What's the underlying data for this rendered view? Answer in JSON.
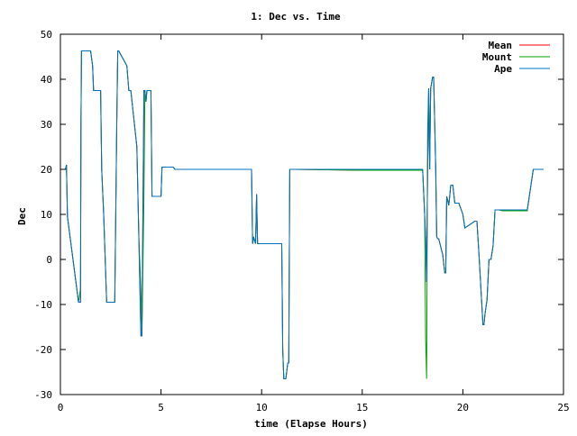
{
  "chart_data": {
    "type": "line",
    "title": "1: Dec vs. Time",
    "xlabel": "time (Elapse Hours)",
    "ylabel": "Dec",
    "xlim": [
      0,
      25
    ],
    "ylim": [
      -30,
      50
    ],
    "xticks": [
      0,
      5,
      10,
      15,
      20,
      25
    ],
    "yticks": [
      -30,
      -20,
      -10,
      0,
      10,
      20,
      30,
      40,
      50
    ],
    "grid": false,
    "legend_position": "top-right",
    "series": [
      {
        "name": "Mean",
        "color": "#ff0000",
        "x": [
          0,
          0.25,
          0.3,
          0.35,
          0.9,
          1.0,
          1.02,
          1.05,
          1.5,
          1.6,
          1.65,
          2.0,
          2.05,
          2.15,
          2.3,
          2.4,
          2.7,
          2.8,
          2.85,
          2.9,
          3.3,
          3.4,
          3.5,
          3.8,
          3.9,
          4.0,
          4.05,
          4.15,
          4.2,
          4.25,
          4.3,
          4.5,
          4.55,
          4.6,
          4.65,
          4.7,
          5.0,
          5.05,
          5.1,
          5.6,
          5.7,
          9.5,
          9.55,
          9.6,
          9.7,
          9.75,
          9.8,
          9.9,
          10.0,
          10.6,
          11.0,
          11.05,
          11.1,
          11.2,
          11.3,
          11.35,
          11.4,
          11.6,
          15.0,
          18.0,
          18.1,
          18.15,
          18.2,
          18.25,
          18.3,
          18.35,
          18.4,
          18.5,
          18.55,
          18.6,
          18.65,
          18.7,
          18.75,
          18.8,
          19.0,
          19.1,
          19.15,
          19.2,
          19.3,
          19.4,
          19.5,
          19.6,
          19.7,
          19.8,
          20.0,
          20.1,
          20.6,
          20.7,
          20.8,
          21.0,
          21.05,
          21.1,
          21.2,
          21.3,
          21.4,
          21.5,
          21.6,
          21.7,
          21.8,
          22.0,
          22.5,
          23.0,
          23.2,
          23.5,
          23.6,
          23.65,
          23.7,
          24.0
        ],
        "y": [
          20,
          20,
          21,
          9.5,
          -9.5,
          -9.5,
          30,
          46.3,
          46.3,
          43,
          37.5,
          37.5,
          20,
          10,
          -9.5,
          -9.5,
          -9.5,
          30,
          46.3,
          46.3,
          43,
          37.5,
          37.5,
          25,
          5,
          -17,
          -17,
          37.5,
          37.5,
          35,
          37.5,
          37.5,
          14,
          14,
          14,
          14,
          14,
          20.5,
          20.5,
          20.5,
          20,
          20,
          3.5,
          5,
          3.5,
          14.5,
          3.5,
          3.5,
          3.5,
          3.5,
          3.5,
          -20,
          -26.5,
          -26.5,
          -23,
          -23,
          20,
          20,
          19.8,
          19.8,
          10,
          5,
          -5,
          20,
          38,
          20,
          38,
          40.5,
          40.5,
          30,
          20,
          5,
          4.6,
          4.6,
          1,
          -3,
          -3,
          14,
          12,
          16.5,
          16.5,
          12.5,
          12.5,
          12.5,
          10,
          7,
          8.5,
          8.5,
          1,
          -14.5,
          -14.5,
          -12,
          -9,
          0,
          0,
          3,
          11,
          11,
          11,
          10.8,
          10.8,
          10.8,
          10.8,
          20,
          20,
          20,
          20,
          20
        ]
      },
      {
        "name": "Mount",
        "color": "#00a000",
        "x": [
          0,
          0.25,
          0.3,
          0.35,
          0.9,
          1.0,
          1.02,
          1.05,
          1.5,
          1.6,
          1.65,
          2.0,
          2.05,
          2.15,
          2.3,
          2.4,
          2.7,
          2.8,
          2.85,
          2.9,
          3.3,
          3.4,
          3.5,
          3.8,
          3.9,
          4.0,
          4.05,
          4.15,
          4.2,
          4.25,
          4.3,
          4.5,
          4.55,
          4.6,
          4.65,
          4.7,
          5.0,
          5.05,
          5.1,
          5.6,
          5.7,
          9.5,
          9.55,
          9.6,
          9.7,
          9.75,
          9.8,
          9.9,
          10.0,
          10.6,
          11.0,
          11.05,
          11.1,
          11.2,
          11.3,
          11.35,
          11.4,
          11.6,
          15.0,
          18.0,
          18.1,
          18.15,
          18.2,
          18.25,
          18.3,
          18.35,
          18.4,
          18.5,
          18.55,
          18.6,
          18.65,
          18.7,
          18.75,
          18.8,
          19.0,
          19.1,
          19.15,
          19.2,
          19.3,
          19.4,
          19.5,
          19.6,
          19.7,
          19.8,
          20.0,
          20.1,
          20.6,
          20.7,
          20.8,
          21.0,
          21.05,
          21.1,
          21.2,
          21.3,
          21.4,
          21.5,
          21.6,
          21.7,
          21.8,
          22.0,
          22.5,
          23.0,
          23.2,
          23.5,
          23.6,
          23.65,
          23.7,
          24.0
        ],
        "y": [
          20,
          20,
          21,
          9.5,
          -9.5,
          -6.5,
          30,
          46.3,
          46.3,
          43,
          37.5,
          37.5,
          20,
          10,
          -9.5,
          -9.5,
          -9.5,
          30,
          46.3,
          46.3,
          43,
          37.5,
          37.5,
          25,
          5,
          -7,
          -17,
          13,
          37.5,
          35,
          37.5,
          37.5,
          14,
          14,
          14,
          14,
          14,
          20.5,
          20.5,
          20.5,
          20,
          20,
          3.5,
          5,
          3.5,
          14.5,
          3.5,
          3.5,
          3.5,
          3.5,
          3.5,
          -20,
          -26.5,
          -26.5,
          -23,
          -23,
          20,
          20,
          19.8,
          19.8,
          10,
          -17.5,
          -26.5,
          28.5,
          38,
          20,
          38,
          40.5,
          40.5,
          30,
          20,
          5,
          4.6,
          4.6,
          1,
          -3,
          -3,
          14,
          12,
          16.5,
          16.5,
          12.5,
          12.5,
          12.5,
          10,
          7,
          8.5,
          8.5,
          1,
          -14.5,
          -14.5,
          -12,
          -9,
          0,
          0,
          3,
          11,
          11,
          11,
          10.8,
          10.8,
          10.8,
          10.8,
          20,
          20,
          20,
          20,
          20
        ]
      },
      {
        "name": "Ape",
        "color": "#0070c0",
        "x": [
          0,
          0.25,
          0.3,
          0.35,
          0.9,
          1.0,
          1.02,
          1.05,
          1.5,
          1.6,
          1.65,
          2.0,
          2.05,
          2.15,
          2.3,
          2.4,
          2.7,
          2.8,
          2.85,
          2.9,
          3.3,
          3.4,
          3.5,
          3.8,
          3.9,
          4.0,
          4.05,
          4.15,
          4.2,
          4.25,
          4.3,
          4.5,
          4.55,
          4.6,
          4.65,
          4.7,
          5.0,
          5.05,
          5.1,
          5.6,
          5.7,
          9.5,
          9.55,
          9.6,
          9.7,
          9.75,
          9.8,
          9.9,
          10.0,
          10.6,
          11.0,
          11.05,
          11.1,
          11.2,
          11.3,
          11.35,
          11.4,
          11.6,
          15.0,
          18.0,
          18.1,
          18.15,
          18.2,
          18.25,
          18.3,
          18.35,
          18.4,
          18.5,
          18.55,
          18.6,
          18.65,
          18.7,
          18.75,
          18.8,
          19.0,
          19.1,
          19.15,
          19.2,
          19.3,
          19.4,
          19.5,
          19.6,
          19.7,
          19.8,
          20.0,
          20.1,
          20.6,
          20.7,
          20.8,
          21.0,
          21.05,
          21.1,
          21.2,
          21.3,
          21.4,
          21.5,
          21.6,
          21.7,
          21.8,
          22.0,
          22.5,
          23.0,
          23.2,
          23.5,
          23.6,
          23.65,
          23.7,
          24.0
        ],
        "y": [
          20,
          20,
          21,
          9.5,
          -9.5,
          -9.5,
          30,
          46.3,
          46.3,
          43,
          37.5,
          37.5,
          20,
          10,
          -9.5,
          -9.5,
          -9.5,
          30,
          46.3,
          46.3,
          43,
          37.5,
          37.5,
          25,
          5,
          -17,
          -17,
          37.5,
          37.5,
          35,
          37.5,
          37.5,
          14,
          14,
          14,
          14,
          14,
          20.5,
          20.5,
          20.5,
          20,
          20,
          3.5,
          5,
          3.5,
          14.5,
          3.5,
          3.5,
          3.5,
          3.5,
          3.5,
          -20,
          -26.5,
          -26.5,
          -23,
          -23,
          20,
          20,
          20,
          20,
          10,
          5,
          -5,
          20,
          38,
          20,
          38,
          40.5,
          40.5,
          30,
          20,
          5,
          4.6,
          4.6,
          1,
          -3,
          -3,
          14,
          12,
          16.5,
          16.5,
          12.5,
          12.5,
          12.5,
          10,
          7,
          8.5,
          8.5,
          1,
          -14.5,
          -14.5,
          -12,
          -9,
          0,
          0,
          3,
          11,
          11,
          11,
          11,
          11,
          11,
          11,
          20,
          20,
          20,
          20,
          20
        ]
      }
    ]
  }
}
